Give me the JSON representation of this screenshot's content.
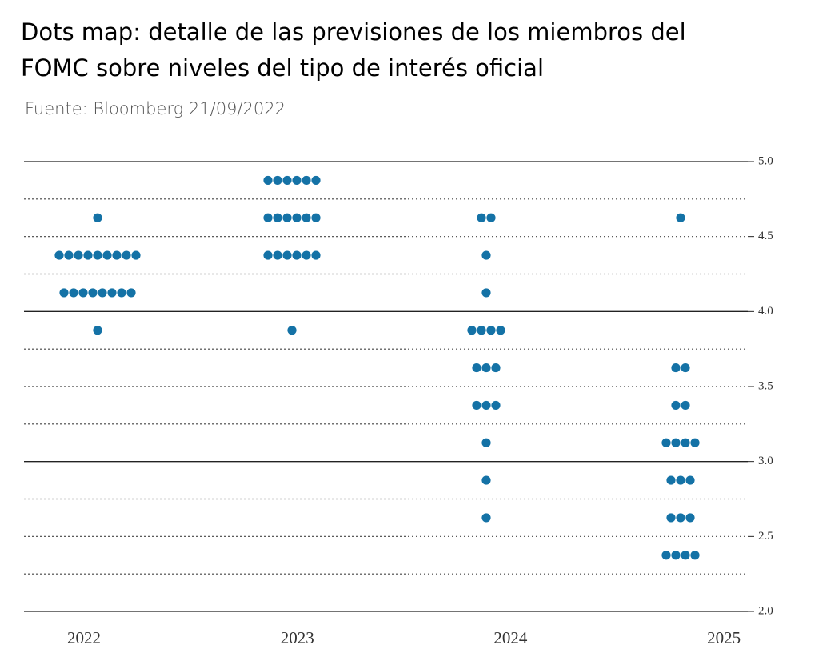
{
  "chart_data": {
    "type": "dot",
    "title": [
      "Dots map: detalle de las previsiones de los miembros del",
      "FOMC sobre niveles del tipo de interés oficial"
    ],
    "subtitle": "Fuente: Bloomberg 21/09/2022",
    "categories": [
      "2022",
      "2023",
      "2024",
      "2025"
    ],
    "values": [
      [
        4.625,
        4.375,
        4.375,
        4.375,
        4.375,
        4.375,
        4.375,
        4.375,
        4.375,
        4.375,
        4.125,
        4.125,
        4.125,
        4.125,
        4.125,
        4.125,
        4.125,
        4.125,
        3.875
      ],
      [
        4.875,
        4.875,
        4.875,
        4.875,
        4.875,
        4.875,
        4.625,
        4.625,
        4.625,
        4.625,
        4.625,
        4.625,
        4.375,
        4.375,
        4.375,
        4.375,
        4.375,
        4.375,
        3.875
      ],
      [
        4.625,
        4.625,
        4.375,
        4.125,
        3.875,
        3.875,
        3.875,
        3.875,
        3.625,
        3.625,
        3.625,
        3.375,
        3.375,
        3.375,
        3.125,
        2.875,
        2.625
      ],
      [
        4.625,
        3.625,
        3.625,
        3.375,
        3.375,
        3.125,
        3.125,
        3.125,
        3.125,
        2.875,
        2.875,
        2.875,
        2.625,
        2.625,
        2.625,
        2.375,
        2.375,
        2.375,
        2.375
      ]
    ],
    "color": "#1472a6",
    "ylim": [
      2.0,
      5.0
    ],
    "yticks": [
      {
        "value": 2.0,
        "label": "2.0"
      },
      2.5,
      {
        "value": 3.0,
        "label": "3.0"
      },
      3.5,
      {
        "value": 4.0,
        "label": "4.0"
      },
      4.5,
      {
        "value": 5.0,
        "label": "5.0"
      }
    ],
    "minor_yticks": [
      2.25,
      2.75,
      3.25,
      3.75,
      4.25,
      4.75
    ],
    "grid": true
  }
}
